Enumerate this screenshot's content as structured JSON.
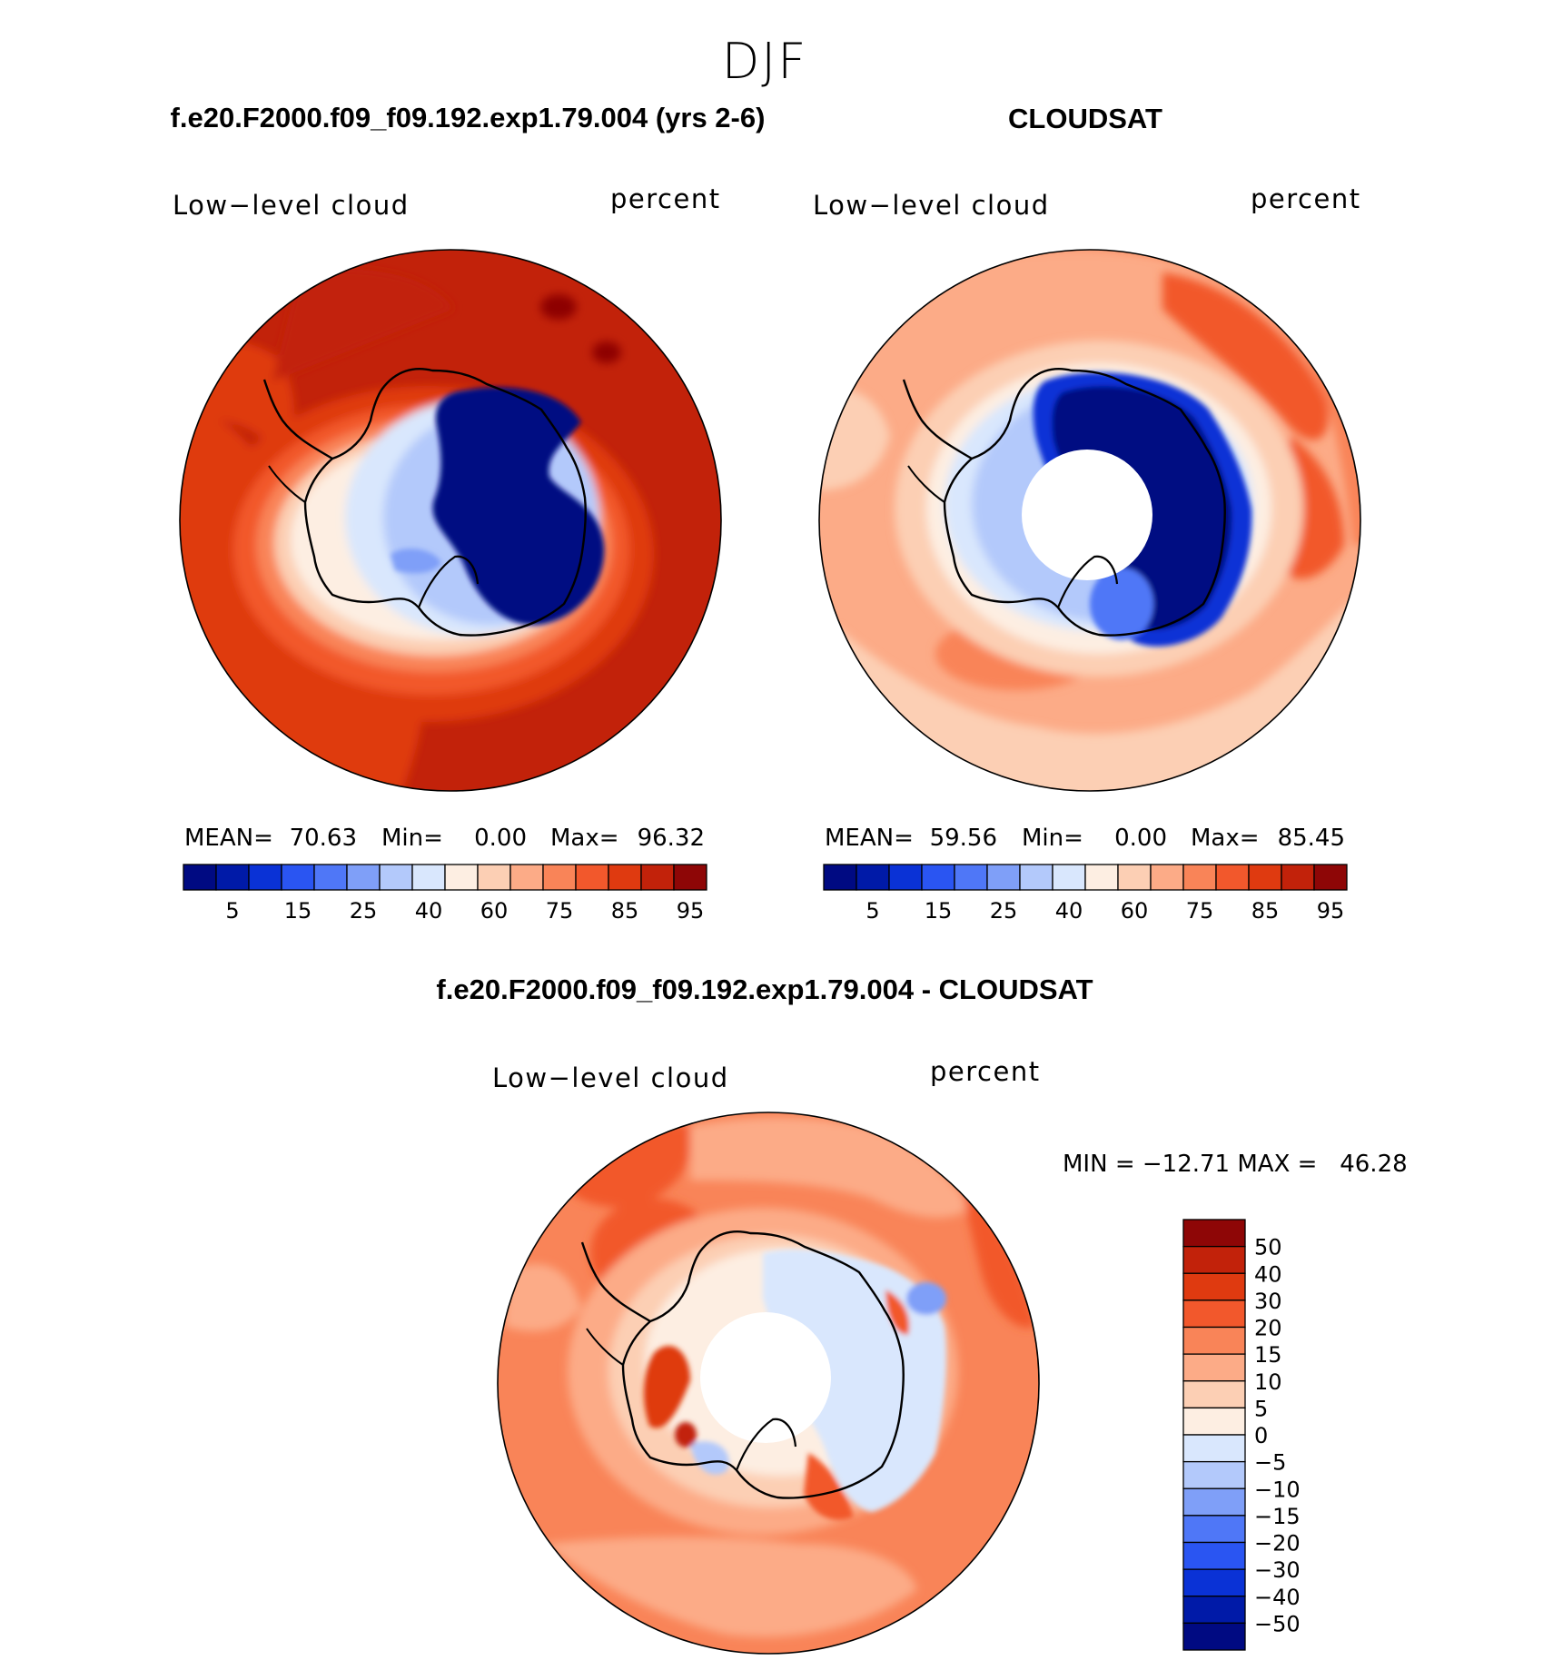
{
  "figure": {
    "season": "DJF",
    "panels": [
      {
        "title": "f.e20.F2000.f09_f09.192.exp1.79.004 (yrs 2-6)",
        "variable": "Low−level cloud",
        "units": "percent",
        "stats": {
          "mean_label": "MEAN=",
          "mean": "70.63",
          "min_label": "Min=",
          "min": "0.00",
          "max_label": "Max=",
          "max": "96.32"
        },
        "labelbar_ticks": [
          "5",
          "15",
          "25",
          "40",
          "60",
          "75",
          "85",
          "95"
        ]
      },
      {
        "title": "CLOUDSAT",
        "variable": "Low−level cloud",
        "units": "percent",
        "stats": {
          "mean_label": "MEAN=",
          "mean": "59.56",
          "min_label": "Min=",
          "min": "0.00",
          "max_label": "Max=",
          "max": "85.45"
        },
        "labelbar_ticks": [
          "5",
          "15",
          "25",
          "40",
          "60",
          "75",
          "85",
          "95"
        ]
      }
    ],
    "diff_panel": {
      "title": "f.e20.F2000.f09_f09.192.exp1.79.004 - CLOUDSAT",
      "variable": "Low−level cloud",
      "units": "percent",
      "minmax": "MIN = −12.71 MAX =   46.28",
      "labelbar_ticks": [
        "50",
        "40",
        "30",
        "20",
        "15",
        "10",
        "5",
        "0",
        "−5",
        "−10",
        "−15",
        "−20",
        "−30",
        "−40",
        "−50"
      ]
    },
    "colormaps": {
      "abs": [
        "#000a82",
        "#001aa8",
        "#0a32d6",
        "#2a55f2",
        "#4f77f7",
        "#7f9ff8",
        "#b3c9fb",
        "#d9e7fd",
        "#fdeee2",
        "#fccfb4",
        "#fcab87",
        "#f98458",
        "#f2582c",
        "#df3a10",
        "#c2220a",
        "#8e0606"
      ],
      "diff": [
        "#8e0606",
        "#c2220a",
        "#df3a10",
        "#f2582c",
        "#f98458",
        "#fcab87",
        "#fccfb4",
        "#fdeee2",
        "#d9e7fd",
        "#b3c9fb",
        "#7f9ff8",
        "#4f77f7",
        "#2a55f2",
        "#0a32d6",
        "#001aa8",
        "#000a82"
      ]
    }
  }
}
